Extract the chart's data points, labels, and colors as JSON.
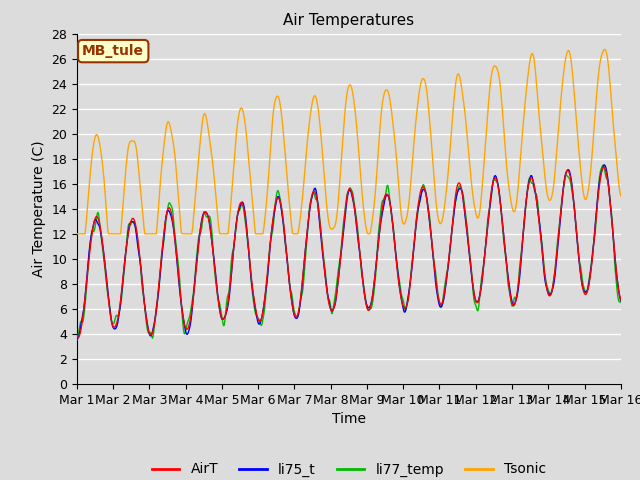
{
  "title": "Air Temperatures",
  "xlabel": "Time",
  "ylabel": "Air Temperature (C)",
  "annotation": "MB_tule",
  "ylim": [
    0,
    28
  ],
  "yticks": [
    0,
    2,
    4,
    6,
    8,
    10,
    12,
    14,
    16,
    18,
    20,
    22,
    24,
    26,
    28
  ],
  "xtick_labels": [
    "Mar 1",
    "Mar 2",
    "Mar 3",
    "Mar 4",
    "Mar 5",
    "Mar 6",
    "Mar 7",
    "Mar 8",
    "Mar 9",
    "Mar 10",
    "Mar 11",
    "Mar 12",
    "Mar 13",
    "Mar 14",
    "Mar 15",
    "Mar 16"
  ],
  "series_colors": {
    "AirT": "#ff0000",
    "li75_t": "#0000ff",
    "li77_temp": "#00bb00",
    "Tsonic": "#ffa500"
  },
  "background_color": "#dcdcdc",
  "plot_bg_color": "#dcdcdc",
  "grid_color": "#ffffff",
  "annotation_bg": "#ffffcc",
  "annotation_border": "#993300",
  "annotation_text_color": "#993300",
  "title_fontsize": 11,
  "axis_label_fontsize": 10,
  "tick_fontsize": 9,
  "legend_fontsize": 10
}
